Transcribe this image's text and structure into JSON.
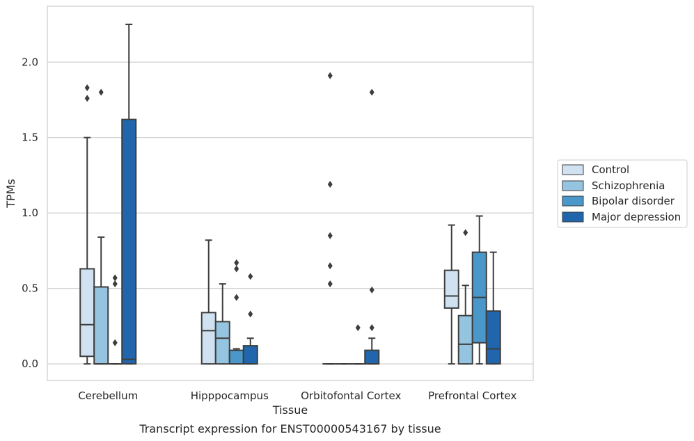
{
  "chart_data": {
    "type": "box",
    "caption": "Transcript expression for ENST00000543167 by tissue",
    "xlabel": "Tissue",
    "ylabel": "TPMs",
    "ylim": [
      -0.11,
      2.37
    ],
    "yticks": [
      0.0,
      0.5,
      1.0,
      1.5,
      2.0
    ],
    "ytick_labels": [
      "0.0",
      "0.5",
      "1.0",
      "1.5",
      "2.0"
    ],
    "grid": "horizontal",
    "legend_position": "right",
    "categories": [
      "Cerebellum",
      "Hipppocampus",
      "Orbitofontal Cortex",
      "Prefrontal Cortex"
    ],
    "series": [
      {
        "name": "Control",
        "color": "#d0e1f2",
        "boxes": [
          {
            "whislo": 0.0,
            "q1": 0.05,
            "med": 0.26,
            "q3": 0.63,
            "whishi": 1.5,
            "fliers": [
              1.76,
              1.83
            ]
          },
          {
            "whislo": 0.0,
            "q1": 0.0,
            "med": 0.22,
            "q3": 0.34,
            "whishi": 0.82,
            "fliers": []
          },
          {
            "whislo": 0.0,
            "q1": 0.0,
            "med": 0.0,
            "q3": 0.0,
            "whishi": 0.0,
            "fliers": [
              0.53,
              0.65,
              0.85,
              1.19,
              1.91
            ]
          },
          {
            "whislo": 0.0,
            "q1": 0.37,
            "med": 0.45,
            "q3": 0.62,
            "whishi": 0.92,
            "fliers": []
          }
        ]
      },
      {
        "name": "Schizophrenia",
        "color": "#94c4df",
        "boxes": [
          {
            "whislo": 0.0,
            "q1": 0.0,
            "med": 0.0,
            "q3": 0.51,
            "whishi": 0.84,
            "fliers": [
              1.8
            ]
          },
          {
            "whislo": 0.0,
            "q1": 0.0,
            "med": 0.17,
            "q3": 0.28,
            "whishi": 0.53,
            "fliers": []
          },
          {
            "whislo": 0.0,
            "q1": 0.0,
            "med": 0.0,
            "q3": 0.0,
            "whishi": 0.0,
            "fliers": []
          },
          {
            "whislo": 0.0,
            "q1": 0.0,
            "med": 0.13,
            "q3": 0.32,
            "whishi": 0.52,
            "fliers": [
              0.87
            ]
          }
        ]
      },
      {
        "name": "Bipolar disorder",
        "color": "#4a98c9",
        "boxes": [
          {
            "whislo": 0.0,
            "q1": 0.0,
            "med": 0.0,
            "q3": 0.0,
            "whishi": 0.0,
            "fliers": [
              0.14,
              0.53,
              0.57
            ]
          },
          {
            "whislo": 0.0,
            "q1": 0.0,
            "med": 0.0,
            "q3": 0.09,
            "whishi": 0.1,
            "fliers": [
              0.44,
              0.63,
              0.67
            ]
          },
          {
            "whislo": 0.0,
            "q1": 0.0,
            "med": 0.0,
            "q3": 0.0,
            "whishi": 0.0,
            "fliers": [
              0.24
            ]
          },
          {
            "whislo": 0.0,
            "q1": 0.14,
            "med": 0.44,
            "q3": 0.74,
            "whishi": 0.98,
            "fliers": []
          }
        ]
      },
      {
        "name": "Major depression",
        "color": "#2166ac",
        "boxes": [
          {
            "whislo": 0.0,
            "q1": 0.0,
            "med": 0.03,
            "q3": 1.62,
            "whishi": 2.25,
            "fliers": []
          },
          {
            "whislo": 0.0,
            "q1": 0.0,
            "med": 0.0,
            "q3": 0.12,
            "whishi": 0.17,
            "fliers": [
              0.33,
              0.58
            ]
          },
          {
            "whislo": 0.0,
            "q1": 0.0,
            "med": 0.0,
            "q3": 0.09,
            "whishi": 0.17,
            "fliers": [
              0.24,
              0.49,
              1.8
            ]
          },
          {
            "whislo": 0.0,
            "q1": 0.0,
            "med": 0.1,
            "q3": 0.35,
            "whishi": 0.74,
            "fliers": []
          }
        ]
      }
    ]
  }
}
